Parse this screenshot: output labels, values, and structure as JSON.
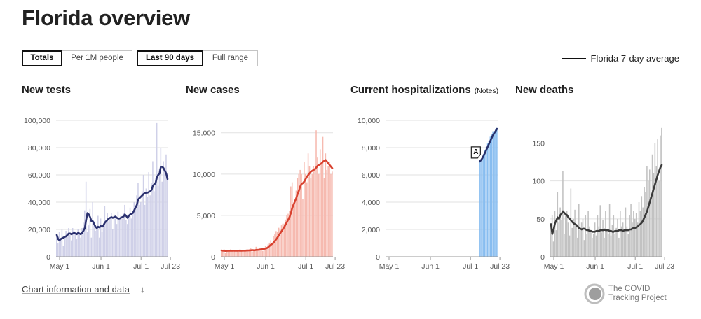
{
  "page": {
    "title": "Florida overview"
  },
  "toggles": {
    "metric": [
      "Totals",
      "Per 1M people"
    ],
    "range": [
      "Last 90 days",
      "Full range"
    ]
  },
  "legend": {
    "label": "Florida 7-day average"
  },
  "footer": {
    "info_link": "Chart information and data",
    "arrow": "↓",
    "brand_line1": "The COVID",
    "brand_line2": "Tracking Project"
  },
  "chart_data": [
    {
      "type": "bar",
      "title": "New tests",
      "ylim": [
        0,
        100000
      ],
      "yticks": [
        0,
        20000,
        40000,
        60000,
        80000,
        100000
      ],
      "ytick_labels": [
        "0",
        "20,000",
        "40,000",
        "60,000",
        "80,000",
        "100,000"
      ],
      "xtick_labels": [
        "May 1",
        "Jun 1",
        "Jul 1",
        "Jul 23"
      ],
      "xtick_days": [
        0,
        31,
        61,
        83
      ],
      "colors": {
        "bar": "#cfd0e8",
        "line": "#2c3270"
      },
      "daily": [
        15000,
        10000,
        18000,
        12000,
        20000,
        8000,
        15000,
        19000,
        17000,
        21000,
        16000,
        12000,
        21000,
        19000,
        18000,
        13000,
        20000,
        16000,
        14000,
        21000,
        25000,
        34000,
        55000,
        18000,
        23000,
        35000,
        14000,
        40000,
        26000,
        19000,
        22000,
        30000,
        14000,
        28000,
        18000,
        23000,
        37000,
        25000,
        32000,
        26000,
        28000,
        32000,
        20000,
        31000,
        28000,
        24000,
        33000,
        27000,
        30000,
        28000,
        32000,
        38000,
        27000,
        24000,
        31000,
        36000,
        28000,
        32000,
        40000,
        36000,
        45000,
        54000,
        38000,
        40000,
        48000,
        60000,
        38000,
        50000,
        44000,
        62000,
        45000,
        54000,
        70000,
        48000,
        58000,
        98000,
        52000,
        64000,
        80000,
        55000,
        70000,
        62000,
        75000,
        60000
      ],
      "avg": [
        16000,
        13000,
        12000,
        13000,
        13500,
        14000,
        14500,
        15000,
        16000,
        17000,
        17000,
        16500,
        17000,
        17500,
        17000,
        16500,
        17500,
        17000,
        16500,
        17500,
        19000,
        21000,
        27000,
        32000,
        31000,
        29000,
        26000,
        26000,
        24000,
        22000,
        21000,
        22000,
        21500,
        22500,
        22000,
        23000,
        25000,
        26000,
        27000,
        28000,
        28500,
        29000,
        28500,
        29000,
        29500,
        28500,
        28000,
        28000,
        28500,
        29000,
        29500,
        31000,
        30000,
        28500,
        30000,
        31000,
        31500,
        32000,
        34000,
        36000,
        38000,
        42000,
        43000,
        44000,
        45000,
        46000,
        46500,
        47000,
        47000,
        47500,
        48000,
        49000,
        52000,
        53000,
        54000,
        58000,
        60000,
        61000,
        66000,
        66000,
        65000,
        63000,
        61000,
        57000
      ]
    },
    {
      "type": "bar",
      "title": "New cases",
      "ylim": [
        0,
        16500
      ],
      "yticks": [
        0,
        5000,
        10000,
        15000
      ],
      "ytick_labels": [
        "0",
        "5,000",
        "10,000",
        "15,000"
      ],
      "xtick_labels": [
        "May 1",
        "Jun 1",
        "Jul 1",
        "Jul 23"
      ],
      "xtick_days": [
        0,
        31,
        61,
        83
      ],
      "colors": {
        "bar": "#f6bab0",
        "line": "#d8412f"
      },
      "daily": [
        700,
        600,
        900,
        500,
        800,
        700,
        650,
        900,
        700,
        600,
        700,
        750,
        800,
        600,
        900,
        700,
        800,
        750,
        650,
        800,
        700,
        900,
        1000,
        600,
        800,
        700,
        1200,
        900,
        750,
        1100,
        900,
        700,
        1000,
        1300,
        1100,
        1500,
        1700,
        2000,
        1500,
        2500,
        2700,
        3100,
        3000,
        3500,
        3300,
        3800,
        4000,
        4000,
        4500,
        5000,
        5200,
        5500,
        8500,
        9000,
        6000,
        6500,
        8000,
        9500,
        10000,
        10500,
        10000,
        7000,
        11500,
        10000,
        9000,
        12500,
        11000,
        9500,
        10000,
        11000,
        10500,
        15300,
        12000,
        10000,
        13000,
        11500,
        14500,
        9500,
        12500,
        10500,
        11000,
        11500,
        10000,
        10300
      ],
      "avg": [
        750,
        720,
        720,
        700,
        710,
        720,
        720,
        730,
        720,
        720,
        720,
        730,
        730,
        720,
        730,
        730,
        740,
        740,
        740,
        750,
        750,
        760,
        780,
        800,
        790,
        780,
        820,
        830,
        840,
        870,
        900,
        920,
        950,
        1000,
        1050,
        1150,
        1300,
        1450,
        1550,
        1700,
        1900,
        2100,
        2350,
        2600,
        2850,
        3100,
        3350,
        3600,
        3900,
        4200,
        4500,
        4800,
        5300,
        5900,
        6300,
        6700,
        7100,
        7600,
        8000,
        8500,
        8800,
        8900,
        9100,
        9400,
        9700,
        9900,
        10100,
        10300,
        10400,
        10500,
        10600,
        10800,
        11000,
        11100,
        11200,
        11300,
        11500,
        11600,
        11700,
        11500,
        11300,
        11100,
        10900,
        10700
      ]
    },
    {
      "type": "bar",
      "title": "Current hospitalizations",
      "note_link": "(Notes)",
      "annotation": "A",
      "ylim": [
        0,
        10000
      ],
      "yticks": [
        0,
        2000,
        4000,
        6000,
        8000,
        10000
      ],
      "ytick_labels": [
        "0",
        "2,000",
        "4,000",
        "6,000",
        "8,000",
        "10,000"
      ],
      "xtick_labels": [
        "May 1",
        "Jun 1",
        "Jul 1",
        "Jul 23"
      ],
      "xtick_days": [
        0,
        31,
        61,
        83
      ],
      "data_start_day": 70,
      "colors": {
        "bar": "#88bdf0",
        "line": "#27306b"
      },
      "daily": [
        6980,
        7100,
        7300,
        7550,
        7800,
        8050,
        8300,
        8500,
        8800,
        9000,
        9200,
        9100,
        9350,
        9450
      ],
      "avg": [
        6980,
        7080,
        7230,
        7420,
        7620,
        7840,
        8060,
        8280,
        8500,
        8720,
        8920,
        9080,
        9220,
        9380
      ]
    },
    {
      "type": "bar",
      "title": "New deaths",
      "ylim": [
        0,
        180
      ],
      "yticks": [
        0,
        50,
        100,
        150
      ],
      "ytick_labels": [
        "0",
        "50",
        "100",
        "150"
      ],
      "xtick_labels": [
        "May 1",
        "Jun 1",
        "Jul 1",
        "Jul 23"
      ],
      "xtick_days": [
        0,
        31,
        61,
        83
      ],
      "colors": {
        "bar": "#c2c2c2",
        "line": "#3a3a3a"
      },
      "daily": [
        40,
        55,
        20,
        60,
        35,
        85,
        45,
        65,
        48,
        113,
        30,
        55,
        60,
        45,
        28,
        90,
        38,
        50,
        62,
        40,
        25,
        70,
        35,
        45,
        50,
        22,
        55,
        30,
        60,
        40,
        35,
        25,
        30,
        45,
        28,
        55,
        40,
        68,
        32,
        48,
        25,
        60,
        35,
        30,
        70,
        28,
        42,
        55,
        30,
        38,
        50,
        25,
        60,
        40,
        45,
        35,
        65,
        40,
        30,
        55,
        70,
        45,
        60,
        50,
        58,
        45,
        72,
        60,
        80,
        65,
        92,
        85,
        120,
        100,
        115,
        75,
        135,
        110,
        150,
        120,
        155,
        100,
        160,
        170
      ],
      "avg": [
        43,
        30,
        36,
        44,
        48,
        52,
        50,
        55,
        57,
        60,
        58,
        56,
        55,
        52,
        50,
        48,
        46,
        44,
        43,
        42,
        40,
        38,
        37,
        36,
        37,
        37,
        36,
        35,
        35,
        34,
        34,
        33,
        33,
        33,
        34,
        34,
        34,
        35,
        35,
        35,
        36,
        35,
        35,
        35,
        34,
        34,
        33,
        33,
        34,
        34,
        34,
        35,
        35,
        35,
        34,
        35,
        35,
        35,
        35,
        36,
        36,
        37,
        38,
        38,
        39,
        40,
        42,
        43,
        45,
        48,
        52,
        56,
        60,
        66,
        72,
        78,
        84,
        90,
        96,
        102,
        108,
        113,
        118,
        121
      ]
    }
  ]
}
